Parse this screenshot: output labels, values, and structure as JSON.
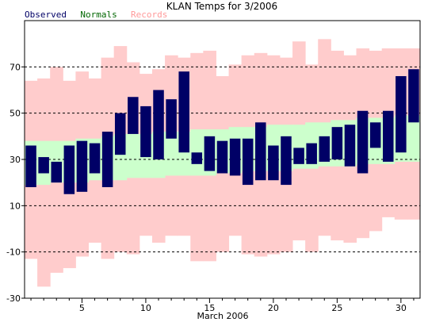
{
  "chart_data": {
    "type": "bar",
    "title": "KLAN Temps for 3/2006",
    "xlabel": "March 2006",
    "ylabel": "",
    "legend": {
      "placement": "top-left",
      "entries": [
        {
          "name": "Observed",
          "color": "#000066"
        },
        {
          "name": "Normals",
          "color": "#006600"
        },
        {
          "name": "Records",
          "color": "#ff9999"
        }
      ]
    },
    "xlim": [
      0.5,
      31.5
    ],
    "ylim": [
      -30,
      90
    ],
    "x_ticks": [
      5,
      10,
      15,
      20,
      25,
      30
    ],
    "y_ticks": [
      -30,
      -10,
      10,
      30,
      50,
      70
    ],
    "grid": {
      "y_dashed": [
        -10,
        10,
        30,
        50,
        70
      ]
    },
    "days": [
      1,
      2,
      3,
      4,
      5,
      6,
      7,
      8,
      9,
      10,
      11,
      12,
      13,
      14,
      15,
      16,
      17,
      18,
      19,
      20,
      21,
      22,
      23,
      24,
      25,
      26,
      27,
      28,
      29,
      30,
      31
    ],
    "series": [
      {
        "name": "Records",
        "color": "#ffcccc",
        "high": [
          64,
          65,
          70,
          64,
          68,
          65,
          74,
          79,
          72,
          67,
          69,
          75,
          74,
          76,
          77,
          66,
          71,
          75,
          76,
          75,
          74,
          81,
          71,
          82,
          77,
          75,
          78,
          77,
          78,
          78,
          78
        ],
        "low": [
          -13,
          -25,
          -19,
          -17,
          -12,
          -6,
          -13,
          -10,
          -11,
          -3,
          -6,
          -3,
          -3,
          -14,
          -14,
          -10,
          -3,
          -11,
          -12,
          -11,
          -10,
          -5,
          -10,
          -3,
          -5,
          -6,
          -4,
          -1,
          5,
          4,
          4
        ]
      },
      {
        "name": "Normals",
        "color": "#ccffcc",
        "high": [
          38,
          38,
          38,
          38,
          39,
          39,
          40,
          41,
          41,
          41,
          42,
          42,
          42,
          43,
          43,
          43,
          44,
          44,
          44,
          45,
          45,
          45,
          46,
          46,
          47,
          47,
          48,
          48,
          48,
          49,
          49
        ],
        "low": [
          19,
          19,
          20,
          20,
          20,
          21,
          21,
          21,
          22,
          22,
          22,
          23,
          23,
          23,
          23,
          24,
          24,
          25,
          25,
          25,
          25,
          26,
          26,
          27,
          27,
          27,
          28,
          28,
          28,
          29,
          29
        ]
      },
      {
        "name": "Observed",
        "color": "#000066",
        "high": [
          36,
          31,
          29,
          36,
          38,
          37,
          42,
          50,
          57,
          53,
          60,
          56,
          68,
          33,
          40,
          38,
          39,
          39,
          46,
          36,
          40,
          35,
          37,
          40,
          44,
          45,
          51,
          46,
          51,
          66,
          69
        ],
        "low": [
          18,
          24,
          20,
          15,
          16,
          24,
          18,
          32,
          41,
          31,
          30,
          39,
          33,
          28,
          25,
          24,
          23,
          19,
          21,
          21,
          19,
          28,
          28,
          29,
          30,
          27,
          24,
          35,
          29,
          33,
          46
        ]
      }
    ]
  }
}
